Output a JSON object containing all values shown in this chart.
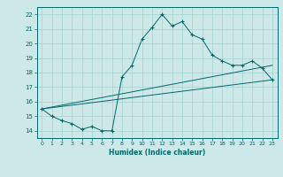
{
  "xlabel": "Humidex (Indice chaleur)",
  "xlim": [
    -0.5,
    23.5
  ],
  "ylim": [
    13.5,
    22.5
  ],
  "yticks": [
    14,
    15,
    16,
    17,
    18,
    19,
    20,
    21,
    22
  ],
  "xticks": [
    0,
    1,
    2,
    3,
    4,
    5,
    6,
    7,
    8,
    9,
    10,
    11,
    12,
    13,
    14,
    15,
    16,
    17,
    18,
    19,
    20,
    21,
    22,
    23
  ],
  "bg_color": "#cce8e8",
  "line_color": "#006868",
  "main_line": {
    "x": [
      0,
      1,
      2,
      3,
      4,
      5,
      6,
      7,
      8,
      9,
      10,
      11,
      12,
      13,
      14,
      15,
      16,
      17,
      18,
      19,
      20,
      21,
      22,
      23
    ],
    "y": [
      15.5,
      15.0,
      14.7,
      14.5,
      14.1,
      14.3,
      14.0,
      14.0,
      17.7,
      18.5,
      20.3,
      21.1,
      22.0,
      21.2,
      21.5,
      20.6,
      20.3,
      19.2,
      18.8,
      18.5,
      18.5,
      18.8,
      18.3,
      17.5
    ]
  },
  "trend_line1": {
    "x": [
      0,
      23
    ],
    "y": [
      15.5,
      17.5
    ]
  },
  "trend_line2": {
    "x": [
      0,
      23
    ],
    "y": [
      15.5,
      18.5
    ]
  }
}
